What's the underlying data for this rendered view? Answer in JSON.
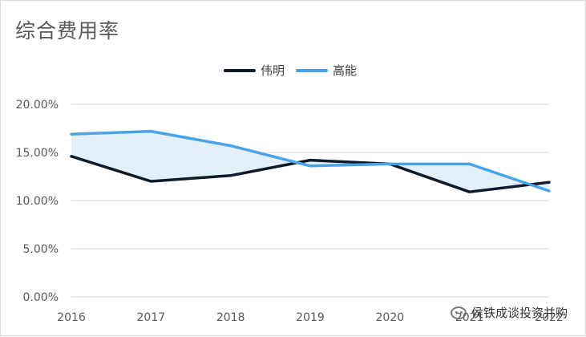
{
  "chart_data": {
    "type": "line",
    "title": "综合费用率",
    "categories": [
      "2016",
      "2017",
      "2018",
      "2019",
      "2020",
      "2021",
      "2022"
    ],
    "series": [
      {
        "name": "伟明",
        "values": [
          14.6,
          12.0,
          12.6,
          14.2,
          13.8,
          10.9,
          11.9
        ]
      },
      {
        "name": "高能",
        "values": [
          16.9,
          17.2,
          15.7,
          13.6,
          13.8,
          13.8,
          11.0
        ]
      }
    ],
    "y_ticks": [
      "0.00%",
      "5.00%",
      "10.00%",
      "15.00%",
      "20.00%"
    ],
    "ylim": [
      0,
      20
    ],
    "grid": true,
    "legend_position": "top",
    "fill_between_series": true,
    "colors": {
      "伟明": "#0d1b2a",
      "高能": "#4aa3e6",
      "fill": "#e2f0fb",
      "grid": "#d9d9d9",
      "axis_text": "#595959"
    }
  },
  "watermark": {
    "text": "侯铁成谈投资并购",
    "icon": "wechat-icon"
  }
}
